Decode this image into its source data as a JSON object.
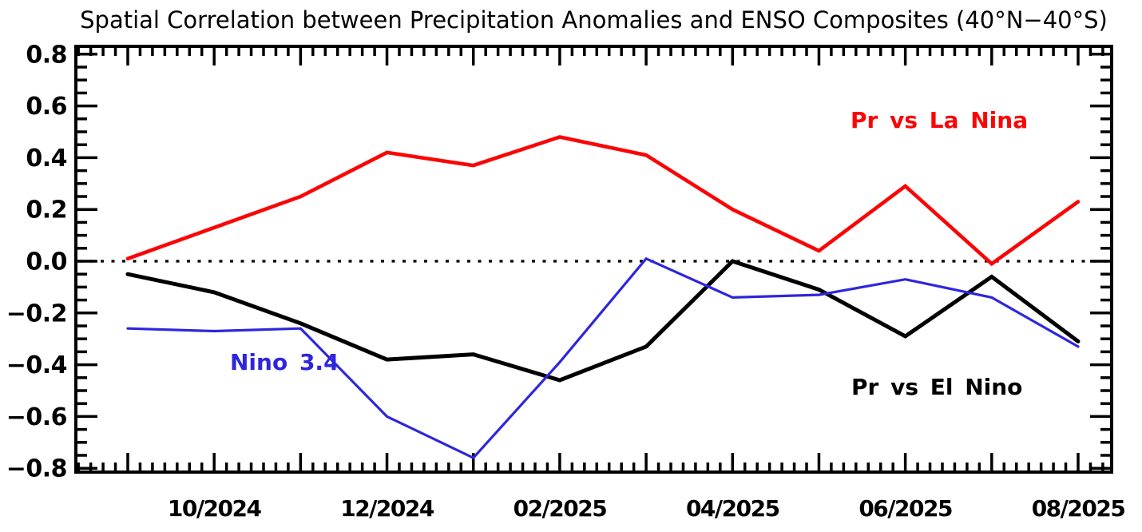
{
  "chart_data": {
    "type": "line",
    "title": "Spatial Correlation between Precipitation Anomalies and ENSO Composites (40°N−40°S)",
    "x": [
      "09/2024",
      "10/2024",
      "11/2024",
      "12/2024",
      "01/2025",
      "02/2025",
      "03/2025",
      "04/2025",
      "05/2025",
      "06/2025",
      "07/2025",
      "08/2025"
    ],
    "x_axis_labeled_ticks": [
      "10/2024",
      "12/2024",
      "02/2025",
      "04/2025",
      "06/2025",
      "08/2025"
    ],
    "y_tick_labels": [
      "0.8",
      "0.6",
      "0.4",
      "0.2",
      "0.0",
      "−0.2",
      "−0.4",
      "−0.6",
      "−0.8"
    ],
    "ylim": [
      -0.8,
      0.8
    ],
    "ytick_step": 0.2,
    "grid": "off",
    "zero_line_style": "dotted",
    "series": [
      {
        "name": "Pr vs El Nino",
        "color": "#000000",
        "values": [
          -0.05,
          -0.12,
          -0.24,
          -0.38,
          -0.36,
          -0.46,
          -0.33,
          0.0,
          -0.11,
          -0.29,
          -0.06,
          -0.31
        ]
      },
      {
        "name": "Pr vs La Nina",
        "color": "#fa0505",
        "values": [
          0.01,
          0.13,
          0.25,
          0.42,
          0.37,
          0.48,
          0.41,
          0.2,
          0.04,
          0.29,
          -0.01,
          0.23
        ]
      },
      {
        "name": "Nino 3.4",
        "color": "#2e26dd",
        "values": [
          -0.26,
          -0.27,
          -0.26,
          -0.6,
          -0.76,
          -0.39,
          0.01,
          -0.14,
          -0.13,
          -0.07,
          -0.14,
          -0.33
        ]
      }
    ],
    "legend": [
      {
        "label": "Pr vs La Nina",
        "color": "#fa0505",
        "position": "upper right inside plot"
      },
      {
        "label": "Nino 3.4",
        "color": "#2e26dd",
        "position": "center left inside plot"
      },
      {
        "label": "Pr vs El Nino",
        "color": "#000000",
        "position": "lower right inside plot"
      }
    ]
  }
}
